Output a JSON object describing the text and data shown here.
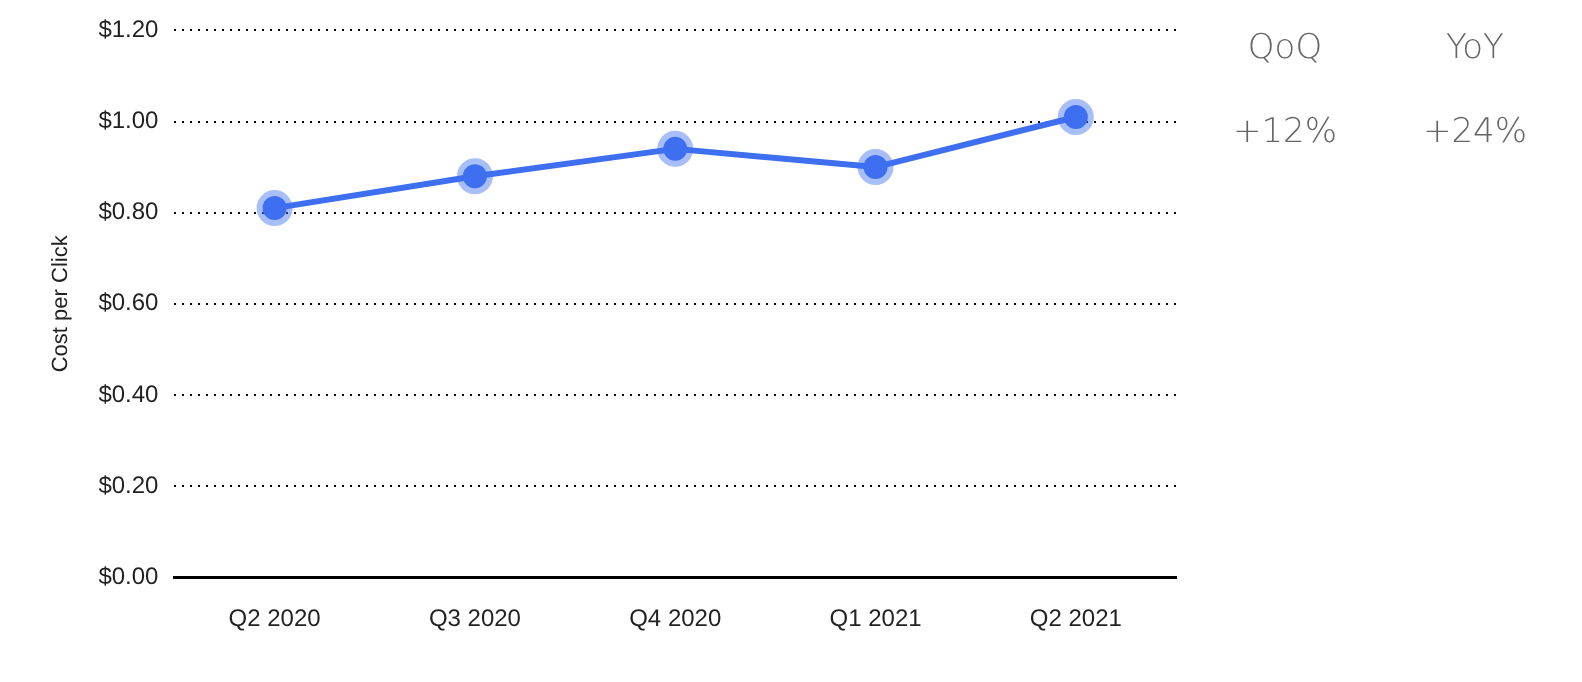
{
  "chart_data": {
    "type": "line",
    "ylabel": "Cost per Click",
    "categories": [
      "Q2 2020",
      "Q3 2020",
      "Q4 2020",
      "Q1 2021",
      "Q2 2021"
    ],
    "series": [
      {
        "color": "#3d6ff0",
        "values": [
          0.81,
          0.88,
          0.94,
          0.9,
          1.01
        ]
      }
    ],
    "ylim": [
      0,
      1.2
    ],
    "yticks": [
      {
        "value": 0,
        "label": "$0.00"
      },
      {
        "value": 0.2,
        "label": "$0.20"
      },
      {
        "value": 0.4,
        "label": "$0.40"
      },
      {
        "value": 0.6,
        "label": "$0.60"
      },
      {
        "value": 0.8,
        "label": "$0.80"
      },
      {
        "value": 1,
        "label": "$1.00"
      },
      {
        "value": 1.2,
        "label": "$1.20"
      }
    ],
    "grid": "y",
    "legend": false,
    "marker": "circle",
    "line_style": "solid",
    "annotations": [
      "QoQ",
      "YoY",
      "+12%",
      "+24%"
    ]
  }
}
